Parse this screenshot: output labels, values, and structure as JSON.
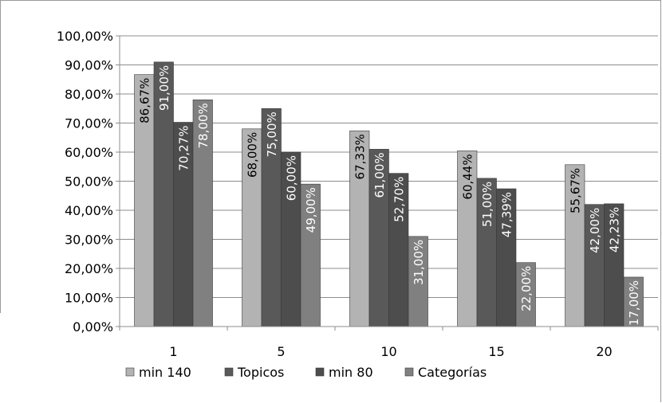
{
  "chart_data": {
    "type": "bar",
    "categories": [
      "1",
      "5",
      "10",
      "15",
      "20"
    ],
    "series": [
      {
        "name": "min 140",
        "values": [
          86.67,
          68.0,
          67.33,
          60.44,
          55.67
        ],
        "labels": [
          "86,67%",
          "68,00%",
          "67,33%",
          "60,44%",
          "55,67%"
        ],
        "color": "#b3b3b3"
      },
      {
        "name": "Topicos",
        "values": [
          91.0,
          75.0,
          61.0,
          51.0,
          42.0
        ],
        "labels": [
          "91,00%",
          "75,00%",
          "61,00%",
          "51,00%",
          "42,00%"
        ],
        "color": "#595959"
      },
      {
        "name": "min 80",
        "values": [
          70.27,
          60.0,
          52.7,
          47.39,
          42.23
        ],
        "labels": [
          "70,27%",
          "60,00%",
          "52,70%",
          "47,39%",
          "42,23%"
        ],
        "color": "#4d4d4d"
      },
      {
        "name": "Categorías",
        "values": [
          78.0,
          49.0,
          31.0,
          22.0,
          17.0
        ],
        "labels": [
          "78,00%",
          "49,00%",
          "31,00%",
          "22,00%",
          "17,00%"
        ],
        "color": "#808080"
      }
    ],
    "yticks": [
      "0,00%",
      "10,00%",
      "20,00%",
      "30,00%",
      "40,00%",
      "50,00%",
      "60,00%",
      "70,00%",
      "80,00%",
      "90,00%",
      "100,00%"
    ],
    "ylim": [
      0,
      100
    ],
    "grid": true,
    "legend_position": "bottom-left",
    "title": "",
    "xlabel": "",
    "ylabel": ""
  }
}
